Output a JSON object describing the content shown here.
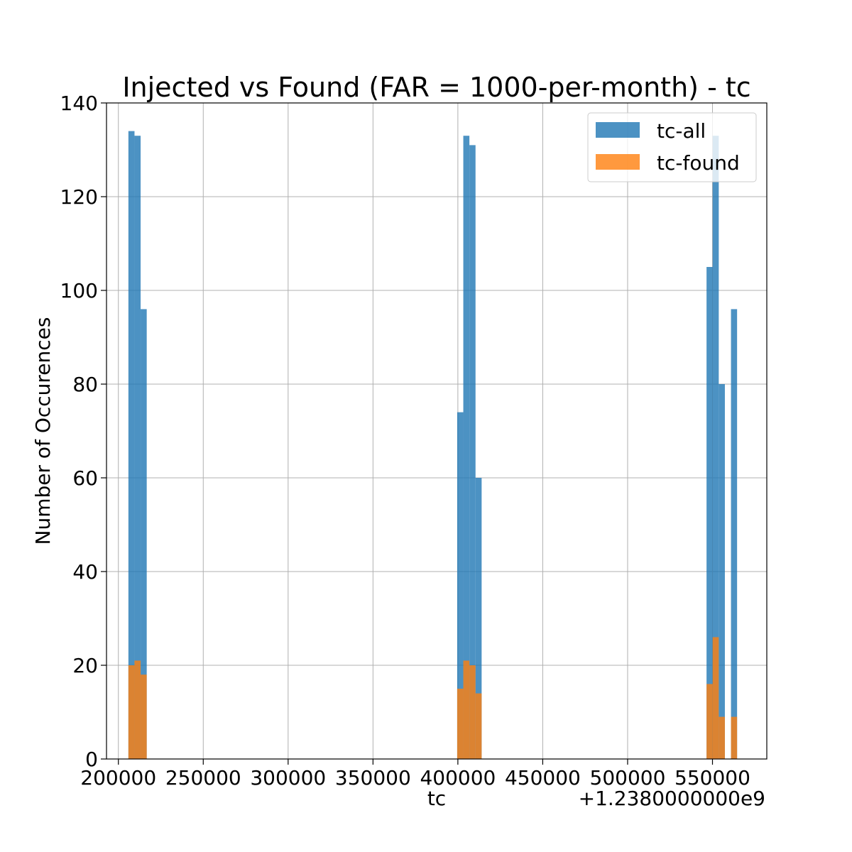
{
  "chart_data": {
    "type": "bar",
    "title": "Injected vs Found (FAR = 1000-per-month) - tc",
    "xlabel": "tc",
    "ylabel": "Number of Occurences",
    "x_offset_label": "+1.2380000000e9",
    "xlim": [
      193000,
      582000
    ],
    "ylim": [
      0,
      140
    ],
    "x_ticks": [
      200000,
      250000,
      300000,
      350000,
      400000,
      450000,
      500000,
      550000
    ],
    "x_tick_labels": [
      "200000",
      "250000",
      "300000",
      "350000",
      "400000",
      "450000",
      "500000",
      "550000"
    ],
    "y_ticks": [
      0,
      20,
      40,
      60,
      80,
      100,
      120,
      140
    ],
    "y_tick_labels": [
      "0",
      "20",
      "40",
      "60",
      "80",
      "100",
      "120",
      "140"
    ],
    "grid": true,
    "legend_position": "top-right",
    "bin_width": 3600,
    "series": [
      {
        "name": "tc-all",
        "color": "#1f77b4",
        "bins": [
          {
            "x0": 205900,
            "count": 134
          },
          {
            "x0": 209500,
            "count": 133
          },
          {
            "x0": 213100,
            "count": 96
          },
          {
            "x0": 399600,
            "count": 74
          },
          {
            "x0": 403200,
            "count": 133
          },
          {
            "x0": 406800,
            "count": 131
          },
          {
            "x0": 410400,
            "count": 60
          },
          {
            "x0": 546500,
            "count": 105
          },
          {
            "x0": 550100,
            "count": 133
          },
          {
            "x0": 553700,
            "count": 80
          },
          {
            "x0": 560900,
            "count": 96
          }
        ]
      },
      {
        "name": "tc-found",
        "color": "#ff7f0e",
        "bins": [
          {
            "x0": 205900,
            "count": 20
          },
          {
            "x0": 209500,
            "count": 21
          },
          {
            "x0": 213100,
            "count": 18
          },
          {
            "x0": 399600,
            "count": 15
          },
          {
            "x0": 403200,
            "count": 21
          },
          {
            "x0": 406800,
            "count": 20
          },
          {
            "x0": 410400,
            "count": 14
          },
          {
            "x0": 546500,
            "count": 16
          },
          {
            "x0": 550100,
            "count": 26
          },
          {
            "x0": 553700,
            "count": 9
          },
          {
            "x0": 560900,
            "count": 9
          }
        ]
      }
    ]
  }
}
